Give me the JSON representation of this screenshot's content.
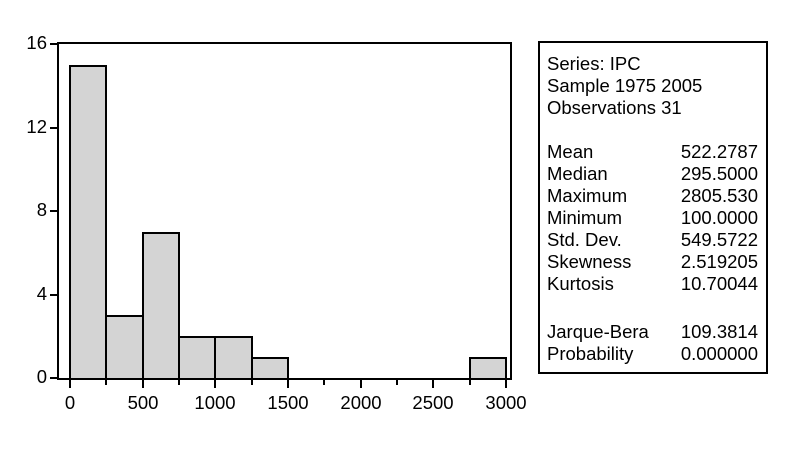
{
  "figure": {
    "background": "#ffffff",
    "bar_fill": "#d4d4d4",
    "line_color": "#000000"
  },
  "chart_data": {
    "type": "bar",
    "subtype": "histogram",
    "series_name": "IPC",
    "title": "",
    "xlabel": "",
    "ylabel": "",
    "grid": false,
    "xlim": [
      0,
      3000
    ],
    "ylim": [
      0,
      16
    ],
    "bin_width": 250,
    "bins": [
      {
        "start": 0,
        "end": 250,
        "count": 15
      },
      {
        "start": 250,
        "end": 500,
        "count": 3
      },
      {
        "start": 500,
        "end": 750,
        "count": 7
      },
      {
        "start": 750,
        "end": 1000,
        "count": 2
      },
      {
        "start": 1000,
        "end": 1250,
        "count": 2
      },
      {
        "start": 1250,
        "end": 1500,
        "count": 1
      },
      {
        "start": 2750,
        "end": 3000,
        "count": 1
      }
    ],
    "x_ticks_major": [
      0,
      500,
      1000,
      1500,
      2000,
      2500,
      3000
    ],
    "x_tick_labels": [
      "0",
      "500",
      "1000",
      "1500",
      "2000",
      "2500",
      "3000"
    ],
    "x_ticks_minor": [
      250,
      750,
      1250,
      1750,
      2250,
      2750
    ],
    "y_ticks": [
      0,
      4,
      8,
      12,
      16
    ],
    "y_tick_labels": [
      "0",
      "4",
      "8",
      "12",
      "16"
    ]
  },
  "stats_panel": {
    "header_lines": [
      "Series: IPC",
      "Sample 1975 2005",
      "Observations 31"
    ],
    "rows": [
      {
        "label": "Mean",
        "value": "522.2787"
      },
      {
        "label": "Median",
        "value": "295.5000"
      },
      {
        "label": "Maximum",
        "value": "2805.530"
      },
      {
        "label": "Minimum",
        "value": "100.0000"
      },
      {
        "label": "Std. Dev.",
        "value": "549.5722"
      },
      {
        "label": "Skewness",
        "value": "2.519205"
      },
      {
        "label": "Kurtosis",
        "value": "10.70044"
      }
    ],
    "test_rows": [
      {
        "label": "Jarque-Bera",
        "value": "109.3814"
      },
      {
        "label": "Probability",
        "value": "0.000000"
      }
    ]
  }
}
